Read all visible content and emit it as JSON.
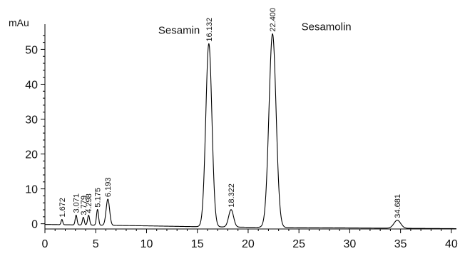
{
  "chart_data": {
    "type": "line",
    "title": "",
    "xlabel": "",
    "ylabel": "mAu",
    "xlim": [
      0,
      40.5
    ],
    "ylim": [
      -1.5,
      56
    ],
    "x_ticks": [
      0,
      5,
      10,
      15,
      20,
      25,
      30,
      35,
      40
    ],
    "y_ticks": [
      0,
      10,
      20,
      30,
      40,
      50
    ],
    "grid": false,
    "baseline": [
      [
        0,
        -0.2
      ],
      [
        5,
        -0.4
      ],
      [
        10,
        -0.6
      ],
      [
        14,
        -0.8
      ],
      [
        20,
        -1.0
      ],
      [
        25,
        -1.1
      ],
      [
        30,
        -1.2
      ],
      [
        35,
        -1.3
      ],
      [
        40.5,
        -1.4
      ]
    ],
    "peaks": [
      {
        "label": "1.672",
        "rt": 1.672,
        "height": 1.5,
        "width": 0.08
      },
      {
        "label": "3.071",
        "rt": 3.071,
        "height": 2.8,
        "width": 0.09
      },
      {
        "label": "3.779",
        "rt": 3.779,
        "height": 2.2,
        "width": 0.09
      },
      {
        "label": "4.298",
        "rt": 4.298,
        "height": 2.8,
        "width": 0.1
      },
      {
        "label": "5.175",
        "rt": 5.175,
        "height": 4.5,
        "width": 0.1
      },
      {
        "label": "6.193",
        "rt": 6.193,
        "height": 7.5,
        "width": 0.17
      },
      {
        "label": "16.132",
        "rt": 16.132,
        "height": 52.5,
        "width": 0.3
      },
      {
        "label": "18.322",
        "rt": 18.322,
        "height": 5.0,
        "width": 0.24
      },
      {
        "label": "22.400",
        "rt": 22.4,
        "height": 55.5,
        "width": 0.35
      },
      {
        "label": "34.681",
        "rt": 34.681,
        "height": 2.3,
        "width": 0.33
      }
    ],
    "annotations": [
      {
        "text": "Sesamin",
        "x": 13.2,
        "y": 54.5
      },
      {
        "text": "Sesamolin",
        "x": 27.7,
        "y": 55.5
      }
    ]
  }
}
